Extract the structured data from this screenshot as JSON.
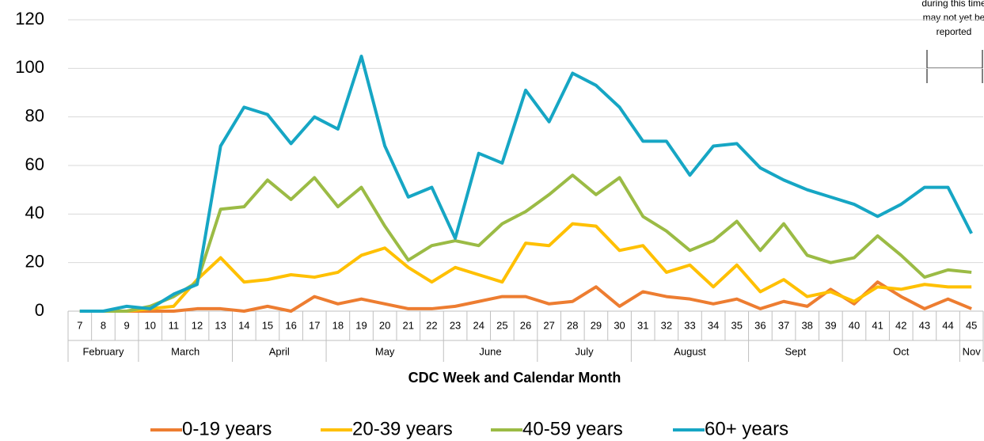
{
  "chart_data": {
    "type": "line",
    "x_label": "CDC Week and Calendar Month",
    "annotation": [
      "during this time",
      "may not yet be",
      "reported"
    ],
    "categories": [
      "7",
      "8",
      "9",
      "10",
      "11",
      "12",
      "13",
      "14",
      "15",
      "16",
      "17",
      "18",
      "19",
      "20",
      "21",
      "22",
      "23",
      "24",
      "25",
      "26",
      "27",
      "28",
      "29",
      "30",
      "31",
      "32",
      "33",
      "34",
      "35",
      "36",
      "37",
      "38",
      "39",
      "40",
      "41",
      "42",
      "43",
      "44",
      "45"
    ],
    "month_groups": [
      {
        "label": "February",
        "count": 3
      },
      {
        "label": "March",
        "count": 4
      },
      {
        "label": "April",
        "count": 4
      },
      {
        "label": "May",
        "count": 5
      },
      {
        "label": "June",
        "count": 4
      },
      {
        "label": "July",
        "count": 4
      },
      {
        "label": "August",
        "count": 5
      },
      {
        "label": "Sept",
        "count": 4
      },
      {
        "label": "Oct",
        "count": 5
      },
      {
        "label": "Nov",
        "count": 1
      }
    ],
    "ylim": [
      0,
      120
    ],
    "yticks": [
      0,
      20,
      40,
      60,
      80,
      100,
      120
    ],
    "grid": true,
    "series": [
      {
        "name": "0-19 years",
        "color": "#ed7d31",
        "values": [
          0,
          0,
          0,
          0,
          0,
          1,
          1,
          0,
          2,
          0,
          6,
          3,
          5,
          3,
          1,
          1,
          2,
          4,
          6,
          6,
          3,
          4,
          10,
          2,
          8,
          6,
          5,
          3,
          5,
          1,
          4,
          2,
          9,
          3,
          12,
          6,
          1,
          5,
          1
        ]
      },
      {
        "name": "20-39 years",
        "color": "#ffc000",
        "values": [
          0,
          0,
          0,
          1,
          2,
          13,
          22,
          12,
          13,
          15,
          14,
          16,
          23,
          26,
          18,
          12,
          18,
          15,
          12,
          28,
          27,
          36,
          35,
          25,
          27,
          16,
          19,
          10,
          19,
          8,
          13,
          6,
          8,
          4,
          10,
          9,
          11,
          10,
          10
        ]
      },
      {
        "name": "40-59 years",
        "color": "#9bbb45",
        "values": [
          0,
          0,
          0,
          2,
          6,
          12,
          42,
          43,
          54,
          46,
          55,
          43,
          51,
          35,
          21,
          27,
          29,
          27,
          36,
          41,
          48,
          56,
          48,
          55,
          39,
          33,
          25,
          29,
          37,
          25,
          36,
          23,
          20,
          22,
          31,
          23,
          14,
          17,
          16
        ]
      },
      {
        "name": "60+ years",
        "color": "#16a6c4",
        "values": [
          0,
          0,
          2,
          1,
          7,
          11,
          68,
          84,
          81,
          69,
          80,
          75,
          105,
          68,
          47,
          51,
          30,
          65,
          61,
          91,
          78,
          98,
          93,
          84,
          70,
          70,
          56,
          68,
          69,
          59,
          54,
          50,
          47,
          44,
          39,
          44,
          51,
          51,
          32
        ]
      }
    ]
  }
}
